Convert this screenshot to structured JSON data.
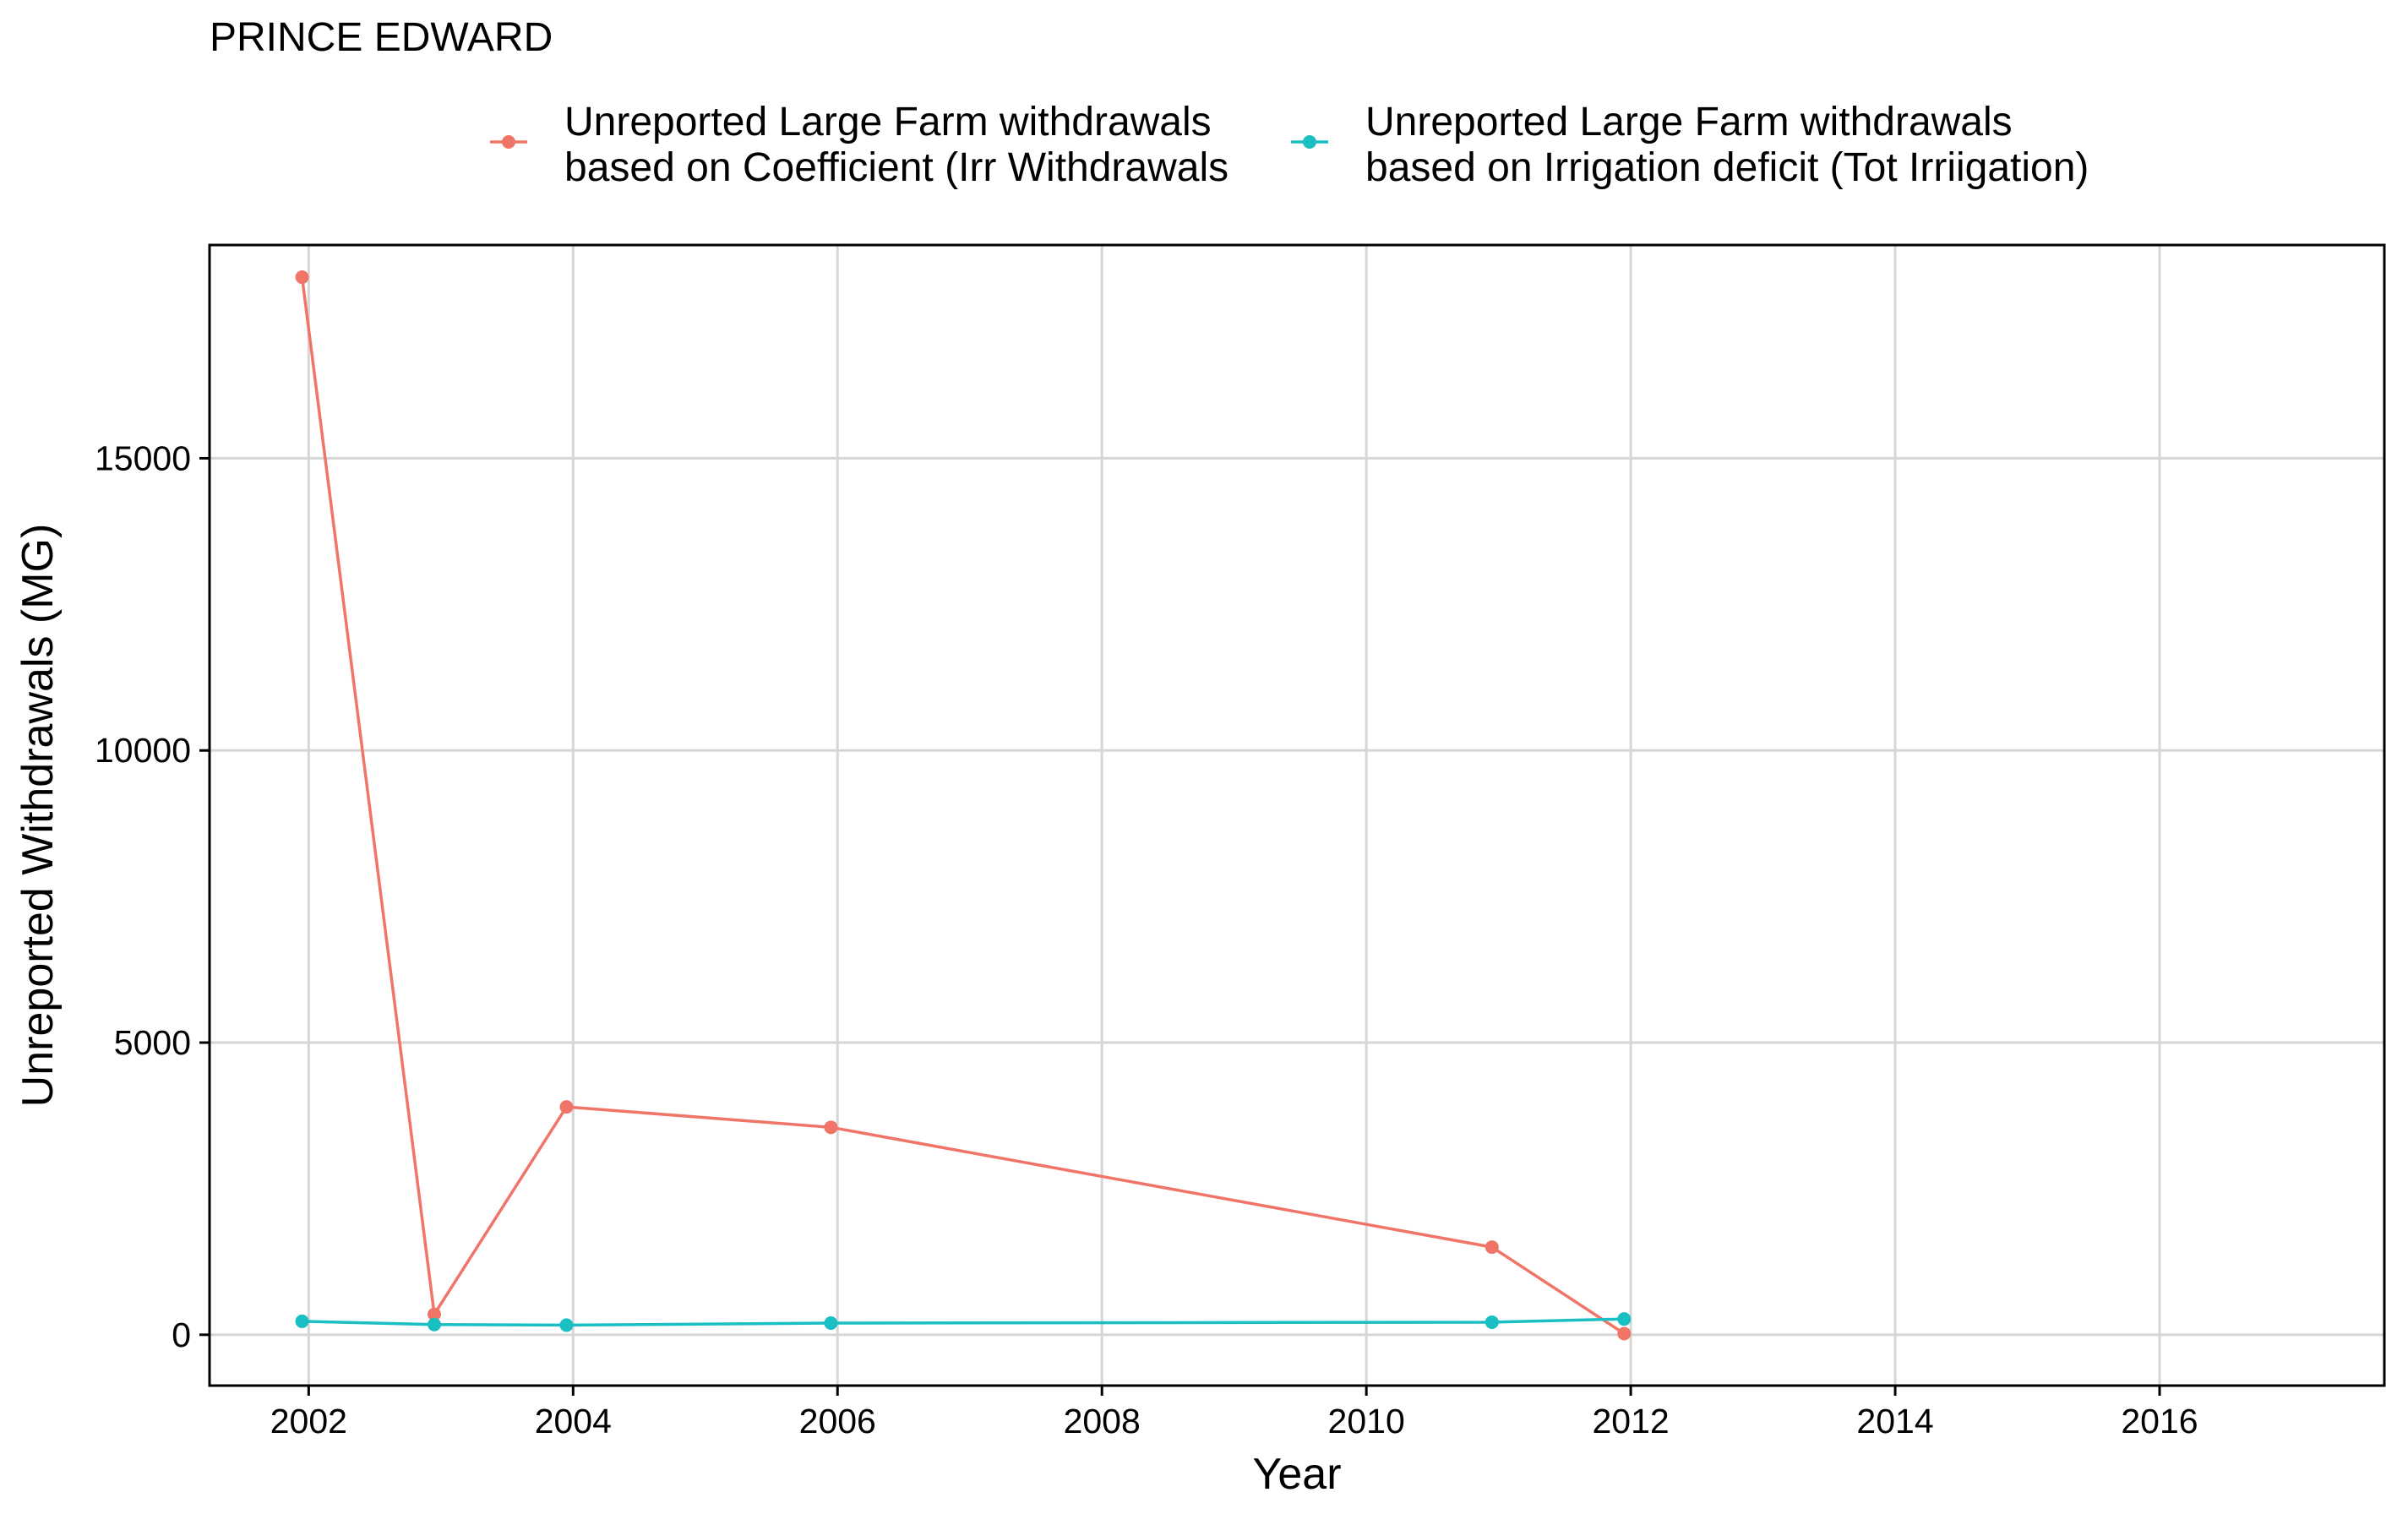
{
  "chart_data": {
    "type": "line",
    "title": "PRINCE EDWARD",
    "xlabel": "Year",
    "ylabel": "Unreported Withdrawals (MG)",
    "xlim": [
      2001.25,
      2017.7
    ],
    "ylim": [
      -870,
      18650
    ],
    "x_ticks": [
      "2002",
      "2004",
      "2006",
      "2008",
      "2010",
      "2012",
      "2014",
      "2016"
    ],
    "y_ticks": [
      "0",
      "5000",
      "10000",
      "15000"
    ],
    "grid": true,
    "legend_position": "top",
    "series": [
      {
        "name": "Unreported Large Farm withdrawals based on Coefficient (Irr Withdrawals",
        "legend_lines": [
          "Unreported Large Farm withdrawals",
          "based on Coefficient (Irr Withdrawals"
        ],
        "color": "#F07568",
        "x": [
          2001.95,
          2002.95,
          2003.95,
          2005.95,
          2010.95,
          2011.95
        ],
        "y": [
          18100,
          350,
          3900,
          3550,
          1500,
          20
        ]
      },
      {
        "name": "Unreported Large Farm withdrawals based on Irrigation deficit (Tot Irriigation)",
        "legend_lines": [
          "Unreported Large Farm withdrawals",
          "based on Irrigation deficit (Tot Irriigation)"
        ],
        "color": "#1ABFC4",
        "x": [
          2001.95,
          2002.95,
          2003.95,
          2005.95,
          2010.95,
          2011.95
        ],
        "y": [
          230,
          175,
          165,
          200,
          215,
          270
        ]
      }
    ]
  }
}
